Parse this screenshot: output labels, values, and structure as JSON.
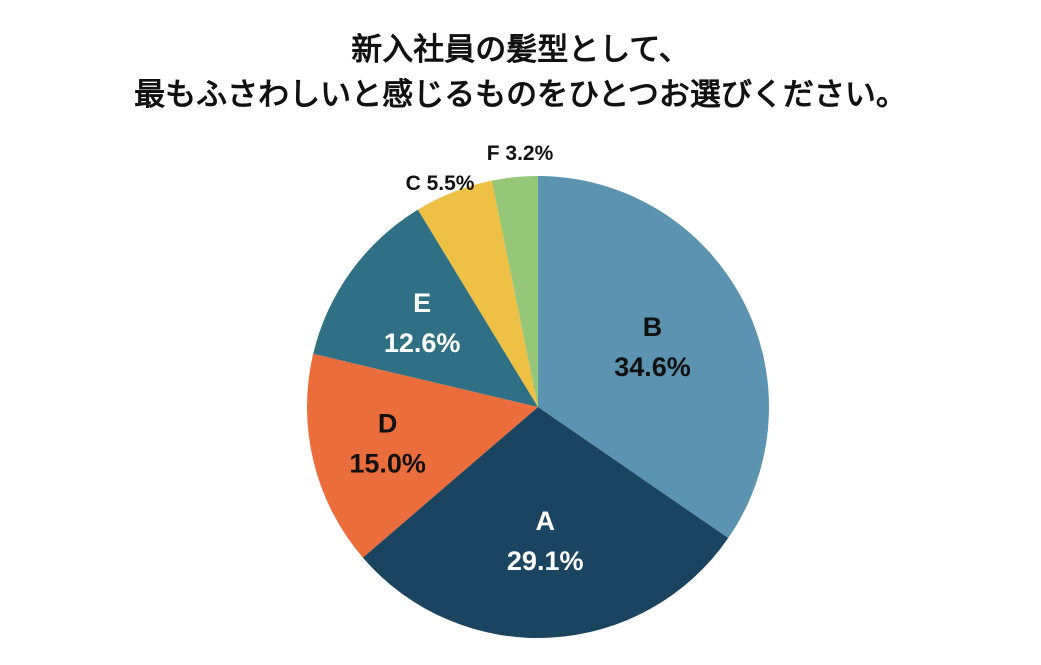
{
  "chart_data": {
    "type": "pie",
    "title_lines": [
      "新入社員の髪型として、",
      "最もふさわしいと感じるものをひとつお選びください。"
    ],
    "slices": [
      {
        "name": "B",
        "value": 34.6,
        "label": "34.6%",
        "color": "#5b93b0"
      },
      {
        "name": "A",
        "value": 29.1,
        "label": "29.1%",
        "color": "#1b4460"
      },
      {
        "name": "D",
        "value": 15.0,
        "label": "15.0%",
        "color": "#ec6d3c"
      },
      {
        "name": "E",
        "value": 12.6,
        "label": "12.6%",
        "color": "#2f7084"
      },
      {
        "name": "C",
        "value": 5.5,
        "label": "5.5%",
        "color": "#eec043"
      },
      {
        "name": "F",
        "value": 3.2,
        "label": "3.2%",
        "color": "#96c779"
      }
    ]
  }
}
